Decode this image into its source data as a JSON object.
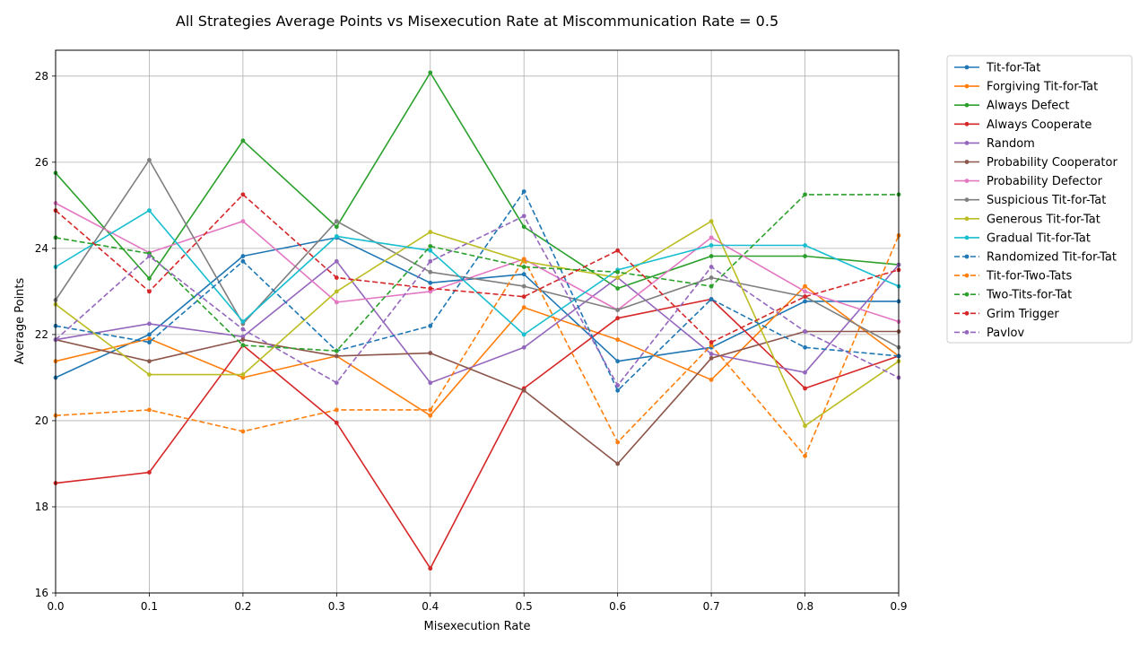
{
  "chart_data": {
    "type": "line",
    "title": "All Strategies Average Points vs Misexecution Rate at Miscommunication Rate = 0.5",
    "xlabel": "Misexecution Rate",
    "ylabel": "Average Points",
    "xlim": [
      0.0,
      0.9
    ],
    "ylim": [
      16,
      28.6
    ],
    "xticks": [
      0.0,
      0.1,
      0.2,
      0.3,
      0.4,
      0.5,
      0.6,
      0.7,
      0.8,
      0.9
    ],
    "xtick_labels": [
      "0.0",
      "0.1",
      "0.2",
      "0.3",
      "0.4",
      "0.5",
      "0.6",
      "0.7",
      "0.8",
      "0.9"
    ],
    "yticks": [
      16,
      18,
      20,
      22,
      24,
      26,
      28
    ],
    "ytick_labels": [
      "16",
      "18",
      "20",
      "22",
      "24",
      "26",
      "28"
    ],
    "grid": true,
    "legend_position": "outside-right",
    "x": [
      0.0,
      0.1,
      0.2,
      0.3,
      0.4,
      0.5,
      0.6,
      0.7,
      0.8,
      0.9
    ],
    "series": [
      {
        "name": "Tit-for-Tat",
        "color": "#1f77b4",
        "dash": "solid",
        "values": [
          21.0,
          22.0,
          23.82,
          24.25,
          23.2,
          23.4,
          21.38,
          21.7,
          22.77,
          22.77
        ]
      },
      {
        "name": "Forgiving Tit-for-Tat",
        "color": "#ff7f0e",
        "dash": "solid",
        "values": [
          21.38,
          21.9,
          21.0,
          21.5,
          20.12,
          22.63,
          21.88,
          20.95,
          23.12,
          21.5
        ]
      },
      {
        "name": "Always Defect",
        "color": "#2ca02c",
        "dash": "solid",
        "values": [
          25.75,
          23.3,
          26.5,
          24.5,
          28.08,
          24.5,
          23.07,
          23.82,
          23.82,
          23.62
        ]
      },
      {
        "name": "Always Cooperate",
        "color": "#d62728",
        "dash": "solid",
        "values": [
          18.55,
          18.8,
          21.75,
          19.95,
          16.57,
          20.75,
          22.38,
          22.82,
          20.75,
          21.5
        ]
      },
      {
        "name": "Random",
        "color": "#9467bd",
        "dash": "solid",
        "values": [
          21.88,
          22.25,
          21.95,
          23.7,
          20.88,
          21.7,
          23.32,
          21.55,
          21.12,
          23.62
        ]
      },
      {
        "name": "Probability Cooperator",
        "color": "#8c564b",
        "dash": "solid",
        "values": [
          21.88,
          21.38,
          21.88,
          21.5,
          21.57,
          20.7,
          19.0,
          21.45,
          22.07,
          22.07
        ]
      },
      {
        "name": "Probability Defector",
        "color": "#e377c2",
        "dash": "solid",
        "values": [
          25.05,
          23.9,
          24.63,
          22.75,
          23.0,
          23.75,
          22.57,
          24.25,
          23.0,
          22.3
        ]
      },
      {
        "name": "Suspicious Tit-for-Tat",
        "color": "#7f7f7f",
        "dash": "solid",
        "values": [
          22.8,
          26.05,
          22.25,
          24.63,
          23.45,
          23.12,
          22.57,
          23.32,
          22.88,
          21.7
        ]
      },
      {
        "name": "Generous Tit-for-Tat",
        "color": "#bcbd22",
        "dash": "solid",
        "values": [
          22.7,
          21.07,
          21.07,
          23.0,
          24.38,
          23.7,
          23.32,
          24.63,
          19.88,
          21.38
        ]
      },
      {
        "name": "Gradual Tit-for-Tat",
        "color": "#17becf",
        "dash": "solid",
        "values": [
          23.57,
          24.88,
          22.3,
          24.28,
          23.95,
          22.0,
          23.5,
          24.07,
          24.07,
          23.12
        ]
      },
      {
        "name": "Randomized Tit-for-Tat",
        "color": "#1f77b4",
        "dash": "dashed",
        "values": [
          22.2,
          21.82,
          23.7,
          21.62,
          22.2,
          25.32,
          20.7,
          22.82,
          21.7,
          21.5
        ]
      },
      {
        "name": "Tit-for-Two-Tats",
        "color": "#ff7f0e",
        "dash": "dashed",
        "values": [
          20.12,
          20.25,
          19.75,
          20.25,
          20.25,
          23.75,
          19.5,
          21.75,
          19.18,
          24.3
        ]
      },
      {
        "name": "Two-Tits-for-Tat",
        "color": "#2ca02c",
        "dash": "dashed",
        "values": [
          24.25,
          23.88,
          21.75,
          21.62,
          24.05,
          23.57,
          23.45,
          23.12,
          25.25,
          25.25
        ]
      },
      {
        "name": "Grim Trigger",
        "color": "#d62728",
        "dash": "dashed",
        "values": [
          24.88,
          23.0,
          25.25,
          23.32,
          23.07,
          22.88,
          23.95,
          21.82,
          22.88,
          23.5
        ]
      },
      {
        "name": "Pavlov",
        "color": "#9467bd",
        "dash": "dashed",
        "values": [
          21.88,
          23.82,
          22.12,
          20.88,
          23.7,
          24.75,
          20.82,
          23.57,
          22.07,
          21.0
        ]
      }
    ]
  }
}
